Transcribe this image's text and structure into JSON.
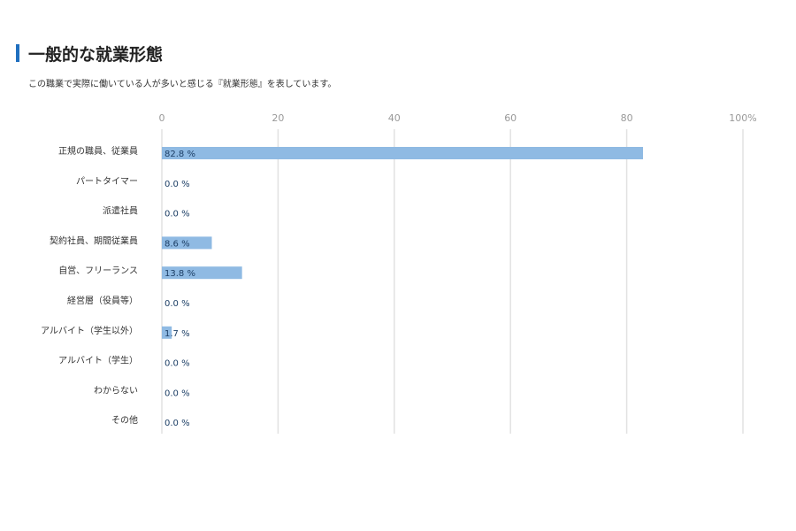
{
  "header": {
    "title": "一般的な就業形態",
    "subtitle": "この職業で実際に働いている人が多いと感じる『就業形態』を表しています。"
  },
  "chart_data": {
    "type": "bar",
    "orientation": "horizontal",
    "categories": [
      "正規の職員、従業員",
      "パートタイマー",
      "派遣社員",
      "契約社員、期間従業員",
      "自営、フリーランス",
      "経営層（役員等）",
      "アルバイト（学生以外）",
      "アルバイト（学生）",
      "わからない",
      "その他"
    ],
    "values": [
      82.8,
      0.0,
      0.0,
      8.6,
      13.8,
      0.0,
      1.7,
      0.0,
      0.0,
      0.0
    ],
    "data_labels": [
      "82.8 %",
      "0.0 %",
      "0.0 %",
      "8.6 %",
      "13.8 %",
      "0.0 %",
      "1.7 %",
      "0.0 %",
      "0.0 %",
      "0.0 %"
    ],
    "xticks": [
      0,
      20,
      40,
      60,
      80,
      100
    ],
    "xtick_labels": [
      "0",
      "20",
      "40",
      "60",
      "80",
      "100%"
    ],
    "xlim": [
      0,
      100
    ],
    "axis_position": "top",
    "grid": true,
    "bar_color": "#8fbae3",
    "label_color": "#1d3f66"
  }
}
